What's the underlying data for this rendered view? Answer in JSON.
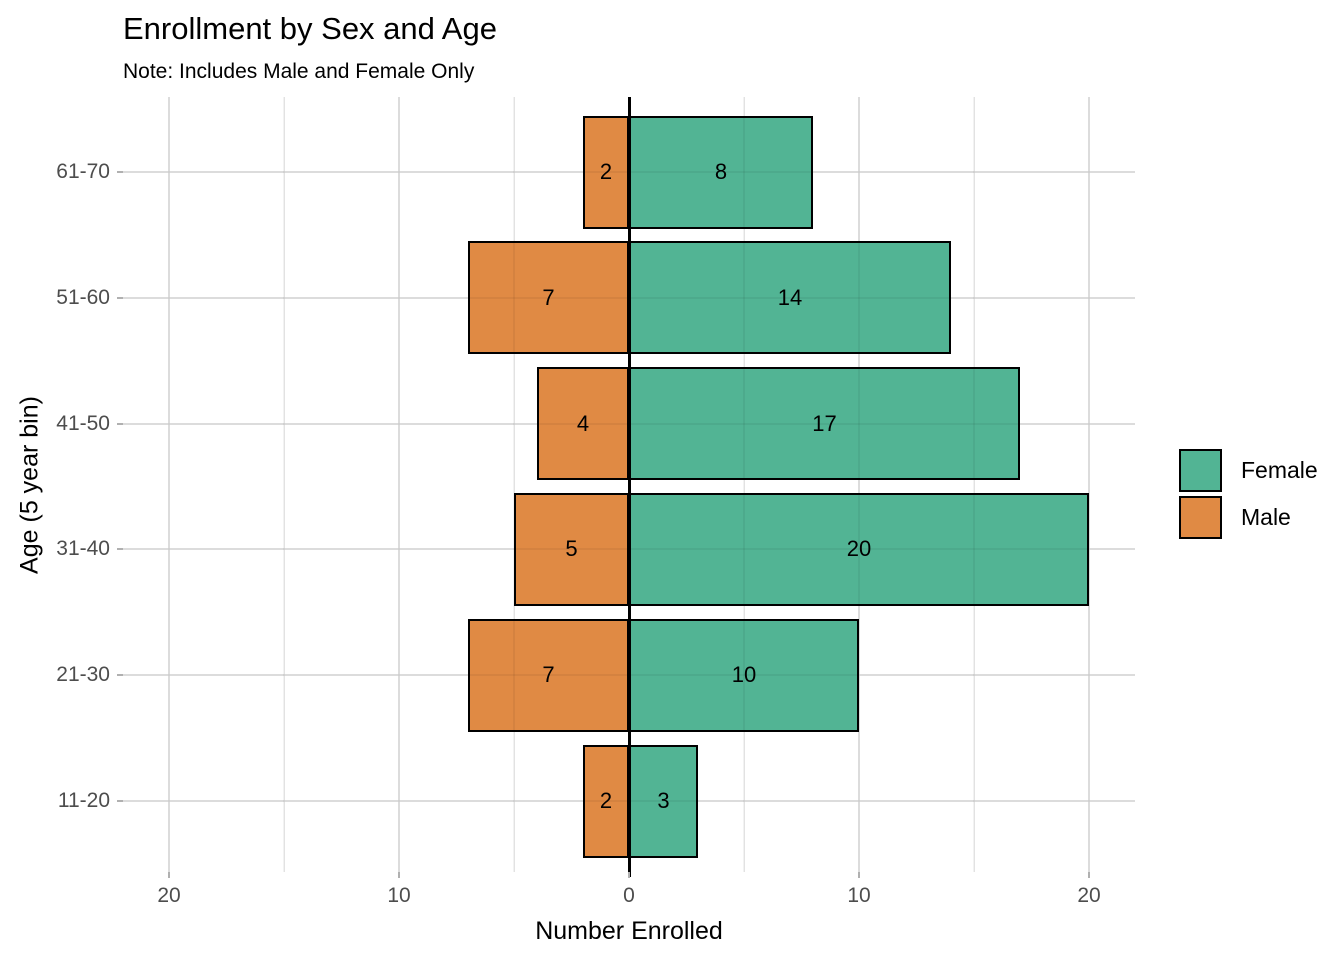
{
  "header": {
    "title": "Enrollment by Sex and Age",
    "subtitle": "Note: Includes Male and Female Only"
  },
  "chart_data": {
    "type": "bar",
    "variant": "horizontal-diverging-population-pyramid",
    "title": "Enrollment by Sex and Age",
    "subtitle": "Note: Includes Male and Female Only",
    "xlabel": "Number Enrolled",
    "ylabel": "Age (5 year bin)",
    "categories": [
      "61-70",
      "51-60",
      "41-50",
      "31-40",
      "21-30",
      "11-20"
    ],
    "series": [
      {
        "name": "Female",
        "color": "#52B494",
        "direction": "right",
        "values": [
          8,
          14,
          17,
          20,
          10,
          3
        ]
      },
      {
        "name": "Male",
        "color": "#E08A44",
        "direction": "left",
        "values": [
          2,
          7,
          4,
          5,
          7,
          2
        ]
      }
    ],
    "bar_value_labels": {
      "Female": [
        8,
        14,
        17,
        20,
        10,
        3
      ],
      "Male": [
        2,
        7,
        4,
        5,
        7,
        2
      ]
    },
    "xlim": [
      -22,
      22
    ],
    "x_ticks": [
      {
        "value": -20,
        "label": "20"
      },
      {
        "value": -10,
        "label": "10"
      },
      {
        "value": 0,
        "label": "0"
      },
      {
        "value": 10,
        "label": "10"
      },
      {
        "value": 20,
        "label": "20"
      }
    ],
    "x_minor_gridlines": [
      -15,
      -5,
      5,
      15
    ],
    "zero_reference_line": true,
    "grid": "light gray major and minor gridlines on white panel",
    "legend_position": "right",
    "legend_entries": [
      "Female",
      "Male"
    ]
  },
  "colors": {
    "female_fill": "#52B494",
    "male_fill": "#E08A44",
    "bar_border": "#000000",
    "zero_line": "#000000",
    "grid_major": "#E8E8E8",
    "grid_minor": "#EFEFEF",
    "tick_label": "#4D4D4D",
    "background": "#FFFFFF"
  }
}
